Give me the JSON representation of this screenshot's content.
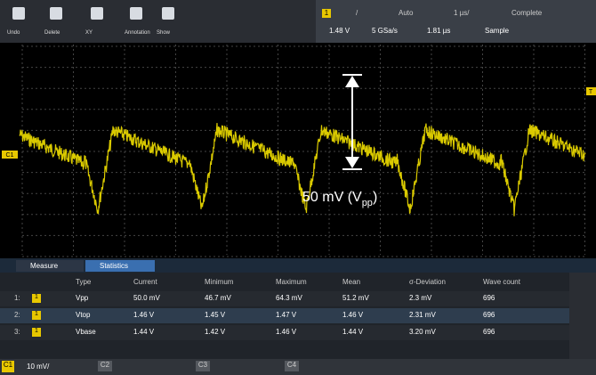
{
  "toolbar": {
    "buttons": [
      "Undo",
      "Delete",
      "XY",
      "Annotation",
      "Show"
    ]
  },
  "status": {
    "channel": "1",
    "row1": [
      "/",
      "Auto",
      "1 µs/",
      "Complete"
    ],
    "row2": [
      "1.48 V",
      "5 GSa/s",
      "1.81 µs",
      "Sample"
    ]
  },
  "markers": {
    "left": "C1",
    "right": "T"
  },
  "annotation": {
    "text": "50 mV (V",
    "subscript": "pp",
    "close": ")"
  },
  "tabs": [
    "Measure",
    "Statistics"
  ],
  "table": {
    "headers": [
      "Type",
      "Current",
      "Minimum",
      "Maximum",
      "Mean",
      "σ-Deviation",
      "Wave count"
    ],
    "rows": [
      [
        "1:",
        "1",
        "Vpp",
        "50.0 mV",
        "46.7 mV",
        "64.3 mV",
        "51.2 mV",
        "2.3 mV",
        "696"
      ],
      [
        "2:",
        "1",
        "Vtop",
        "1.46 V",
        "1.45 V",
        "1.47 V",
        "1.46 V",
        "2.31 mV",
        "696"
      ],
      [
        "3:",
        "1",
        "Vbase",
        "1.44 V",
        "1.42 V",
        "1.46 V",
        "1.44 V",
        "3.20 mV",
        "696"
      ]
    ]
  },
  "footer": {
    "channel": "C1",
    "scale": "10 mV/",
    "others": [
      "C2",
      "C3",
      "C4"
    ]
  }
}
